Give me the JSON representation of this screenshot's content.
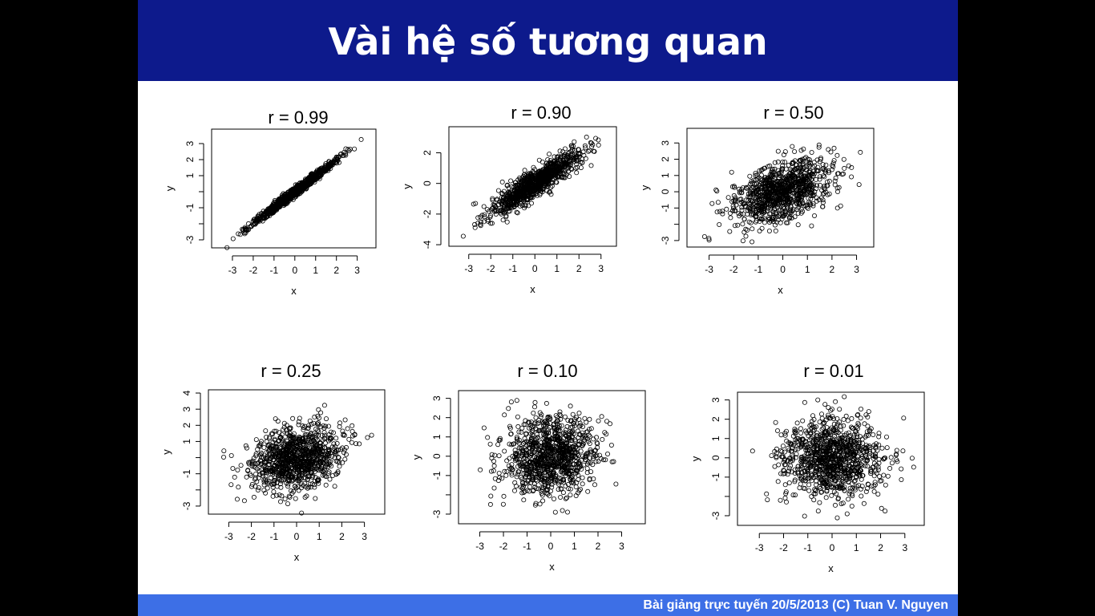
{
  "slide": {
    "title": "Vài hệ số tương quan",
    "footer": "Bài giảng trực tuyến 20/5/2013  (C) Tuan V. Nguyen"
  },
  "colors": {
    "title_bar": "#0d1a8c",
    "footer_bar": "#3d6fe6",
    "points": "#000000"
  },
  "chart_data": [
    {
      "type": "scatter",
      "title": "r = 0.99",
      "r": 0.99,
      "xlabel": "x",
      "ylabel": "y",
      "xlim": [
        -4.0,
        3.9
      ],
      "ylim": [
        -3.5,
        3.9
      ],
      "xticks": [
        -3,
        -2,
        -1,
        0,
        1,
        2,
        3
      ],
      "yticks": [
        -3,
        -2,
        -1,
        0,
        1,
        2,
        3
      ],
      "ytick_labels": [
        "-3",
        "",
        "-1",
        "",
        "1",
        "2",
        "3"
      ]
    },
    {
      "type": "scatter",
      "title": "r = 0.90",
      "r": 0.9,
      "xlabel": "x",
      "ylabel": "y",
      "xlim": [
        -3.9,
        3.7
      ],
      "ylim": [
        -4.1,
        3.7
      ],
      "xticks": [
        -3,
        -2,
        -1,
        0,
        1,
        2,
        3
      ],
      "yticks": [
        -4,
        -2,
        0,
        2
      ],
      "ytick_labels": [
        "-4",
        "-2",
        "0",
        "2"
      ]
    },
    {
      "type": "scatter",
      "title": "r = 0.50",
      "r": 0.5,
      "xlabel": "x",
      "ylabel": "y",
      "xlim": [
        -3.9,
        3.7
      ],
      "ylim": [
        -3.4,
        3.9
      ],
      "xticks": [
        -3,
        -2,
        -1,
        0,
        1,
        2,
        3
      ],
      "yticks": [
        -3,
        -2,
        -1,
        0,
        1,
        2,
        3
      ],
      "ytick_labels": [
        "-3",
        "",
        "-1",
        "0",
        "1",
        "2",
        "3"
      ]
    },
    {
      "type": "scatter",
      "title": "r = 0.25",
      "r": 0.25,
      "xlabel": "x",
      "ylabel": "y",
      "xlim": [
        -3.9,
        3.9
      ],
      "ylim": [
        -3.5,
        4.2
      ],
      "xticks": [
        -3,
        -2,
        -1,
        0,
        1,
        2,
        3
      ],
      "yticks": [
        -3,
        -2,
        -1,
        0,
        1,
        2,
        3,
        4
      ],
      "ytick_labels": [
        "-3",
        "",
        "-1",
        "",
        "1",
        "2",
        "3",
        "4"
      ]
    },
    {
      "type": "scatter",
      "title": "r = 0.10",
      "r": 0.1,
      "xlabel": "x",
      "ylabel": "y",
      "xlim": [
        -3.9,
        4.0
      ],
      "ylim": [
        -3.5,
        3.4
      ],
      "xticks": [
        -3,
        -2,
        -1,
        0,
        1,
        2,
        3
      ],
      "yticks": [
        -3,
        -2,
        -1,
        0,
        1,
        2,
        3
      ],
      "ytick_labels": [
        "-3",
        "",
        "-1",
        "0",
        "1",
        "2",
        "3"
      ]
    },
    {
      "type": "scatter",
      "title": "r = 0.01",
      "r": 0.01,
      "xlabel": "x",
      "ylabel": "y",
      "xlim": [
        -3.9,
        3.8
      ],
      "ylim": [
        -3.5,
        3.4
      ],
      "xticks": [
        -3,
        -2,
        -1,
        0,
        1,
        2,
        3
      ],
      "yticks": [
        -3,
        -2,
        -1,
        0,
        1,
        2,
        3
      ],
      "ytick_labels": [
        "-3",
        "",
        "-1",
        "0",
        "1",
        "2",
        "3"
      ]
    }
  ]
}
